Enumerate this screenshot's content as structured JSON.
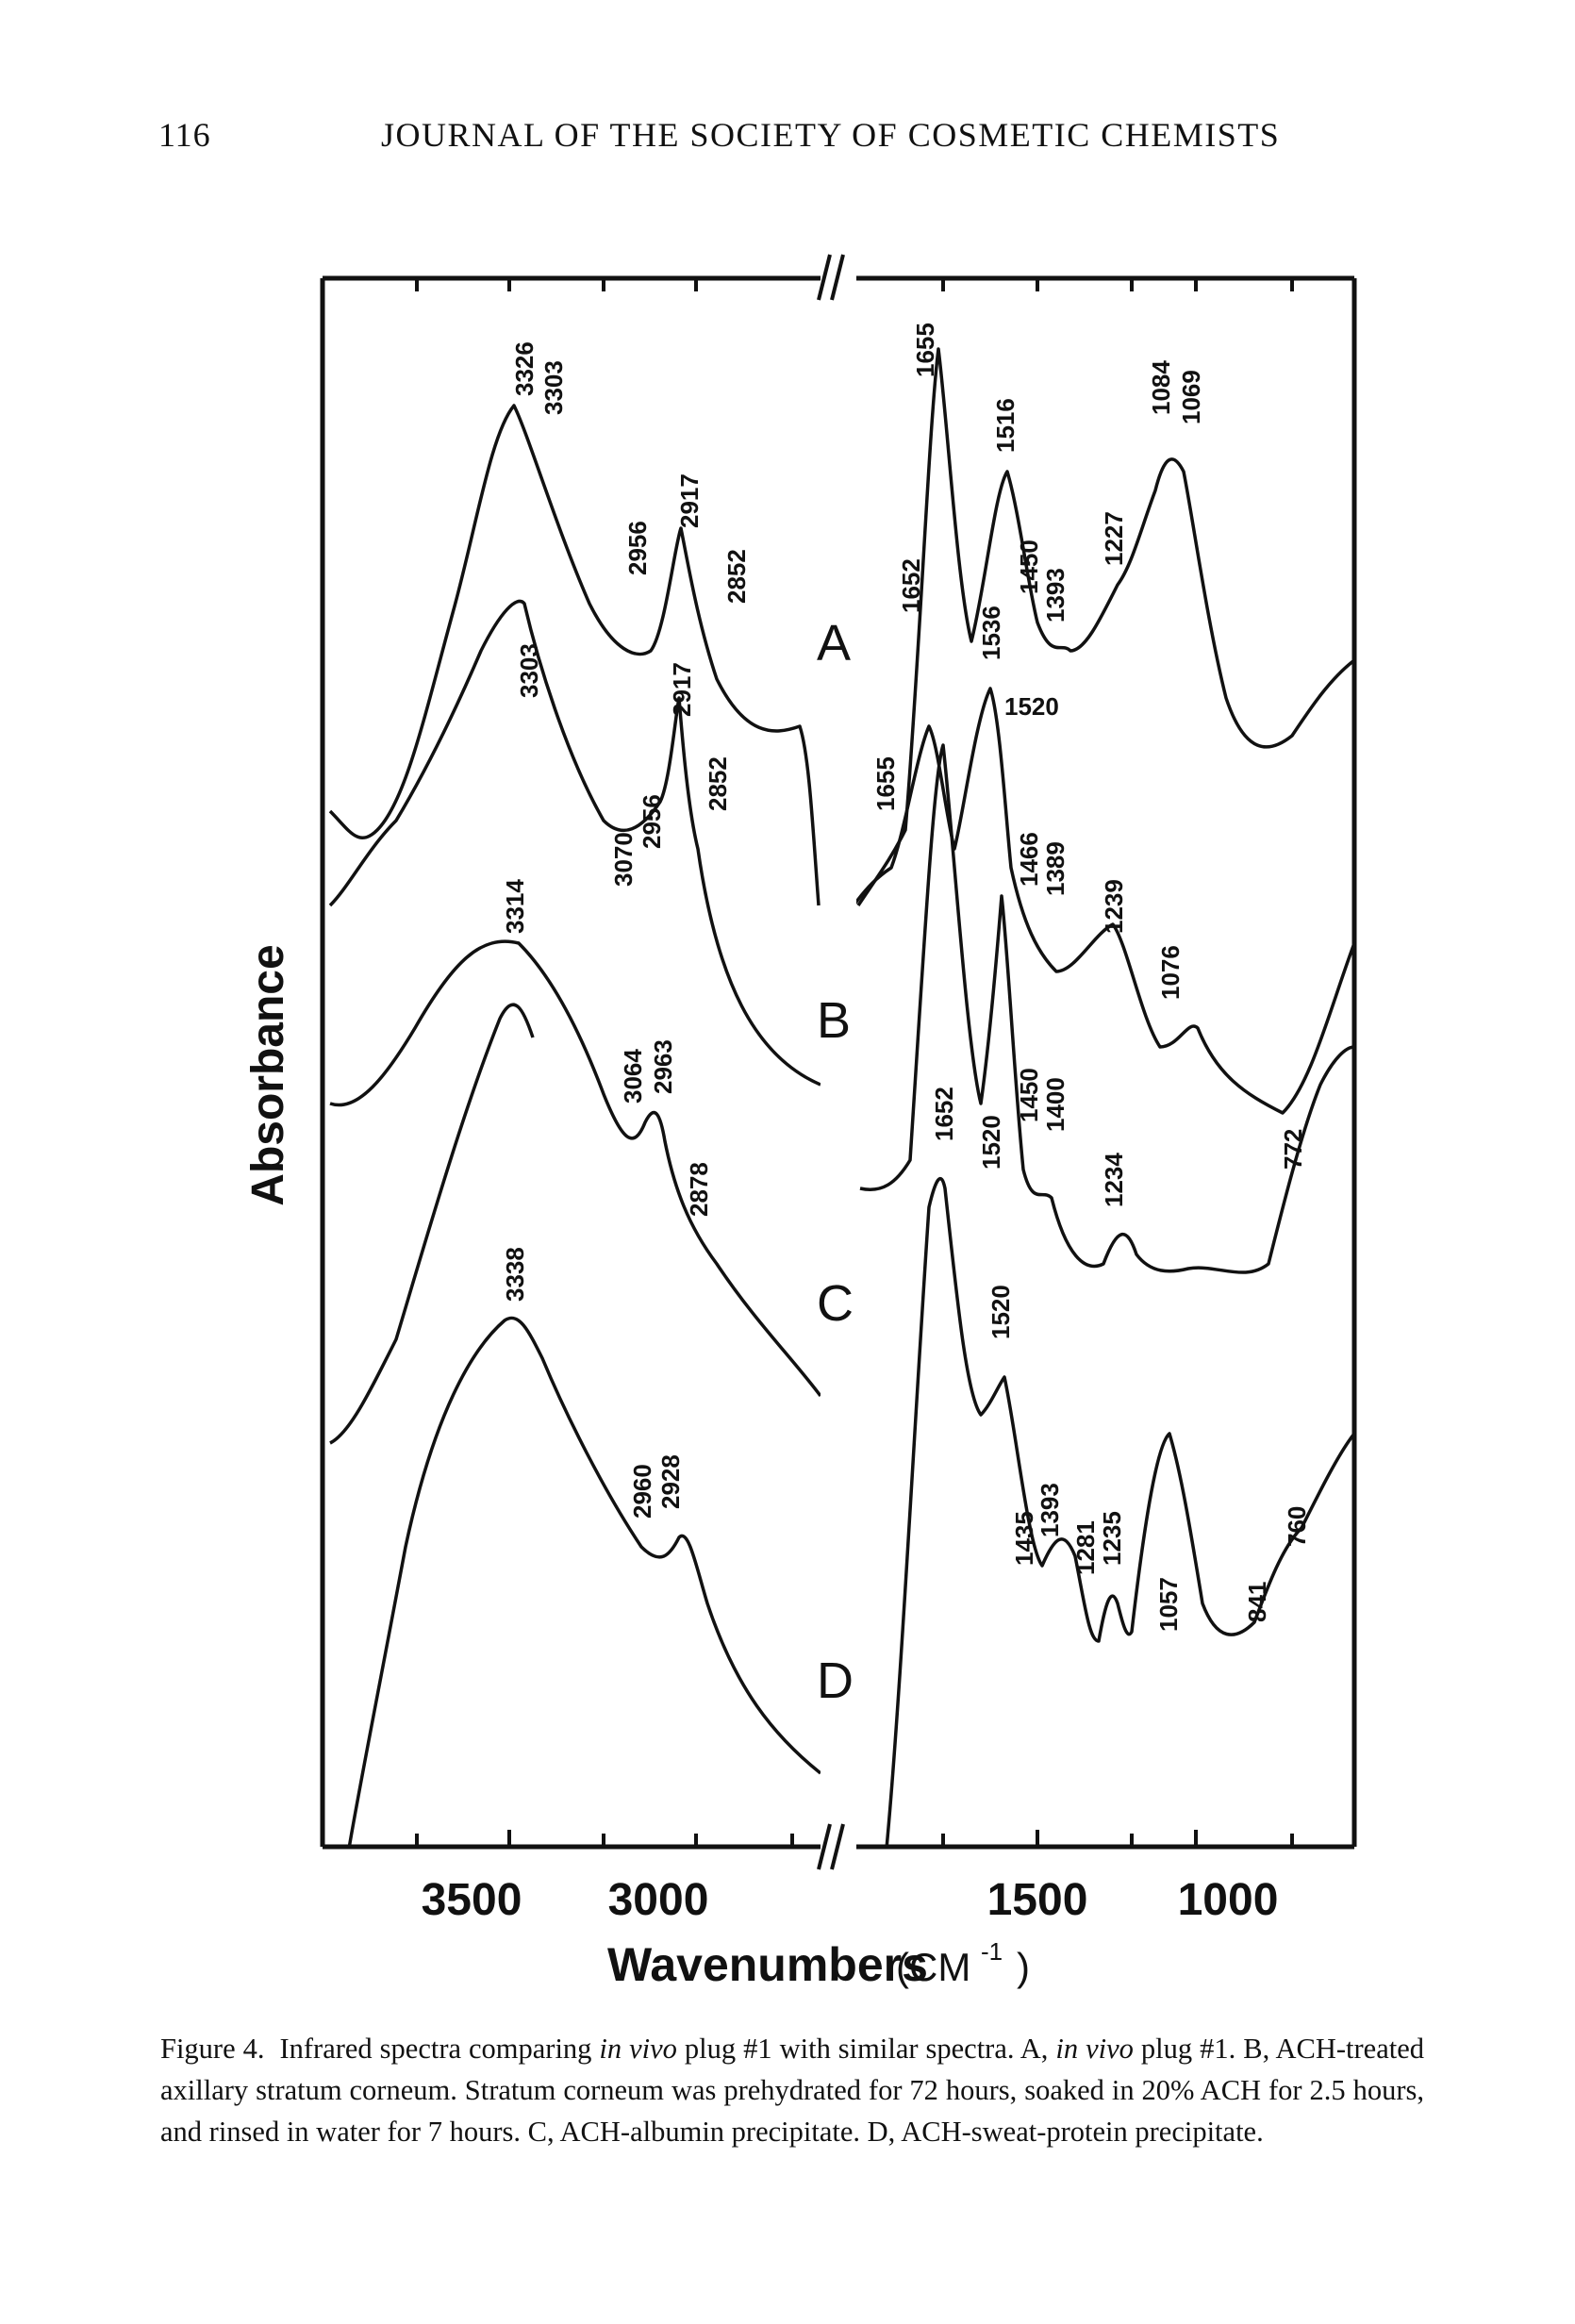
{
  "header": {
    "page_number": "116",
    "journal_title": "JOURNAL OF THE SOCIETY OF COSMETIC CHEMISTS"
  },
  "figure": {
    "y_axis_label": "Absorbance",
    "x_axis_label": "Wavenumbers",
    "x_axis_unit": "(CM",
    "x_axis_unit_sup": "-1",
    "x_axis_unit_close": ")",
    "x_ticks_left": [
      "3500",
      "3000"
    ],
    "x_ticks_right": [
      "1500",
      "1000"
    ],
    "break_mark": "//",
    "spectra": [
      {
        "name": "A",
        "peaks_left": [
          "3326",
          "3303",
          "2956",
          "2917",
          "2852"
        ],
        "peaks_right": [
          "1655",
          "1652",
          "1536",
          "1516",
          "1450",
          "1393",
          "1227",
          "1084",
          "1069"
        ]
      },
      {
        "name": "B",
        "peaks_left": [
          "3303",
          "3070",
          "2956",
          "2917",
          "2852"
        ],
        "peaks_right": [
          "1655",
          "1520",
          "1466",
          "1389",
          "1239",
          "1076"
        ]
      },
      {
        "name": "C",
        "peaks_left": [
          "3314",
          "3064",
          "2963",
          "2878"
        ],
        "peaks_right": [
          "1652",
          "1520",
          "1450",
          "1400",
          "1234",
          "772"
        ]
      },
      {
        "name": "D",
        "peaks_left": [
          "3338",
          "2960",
          "2928"
        ],
        "peaks_right": [
          "1520",
          "1435",
          "1393",
          "1281",
          "1235",
          "1057",
          "841",
          "760"
        ]
      }
    ]
  },
  "caption": {
    "label": "Figure 4.",
    "text_1": "Infrared spectra comparing",
    "em_1": "in vivo",
    "text_2": "plug #1 with similar spectra. A,",
    "em_2": "in vivo",
    "text_3": "plug #1. B, ACH-treated axillary stratum corneum. Stratum corneum was prehydrated for 72 hours, soaked in 20% ACH for 2.5 hours, and rinsed in water for 7 hours. C, ACH-albumin precipitate. D, ACH-sweat-protein precipitate."
  }
}
